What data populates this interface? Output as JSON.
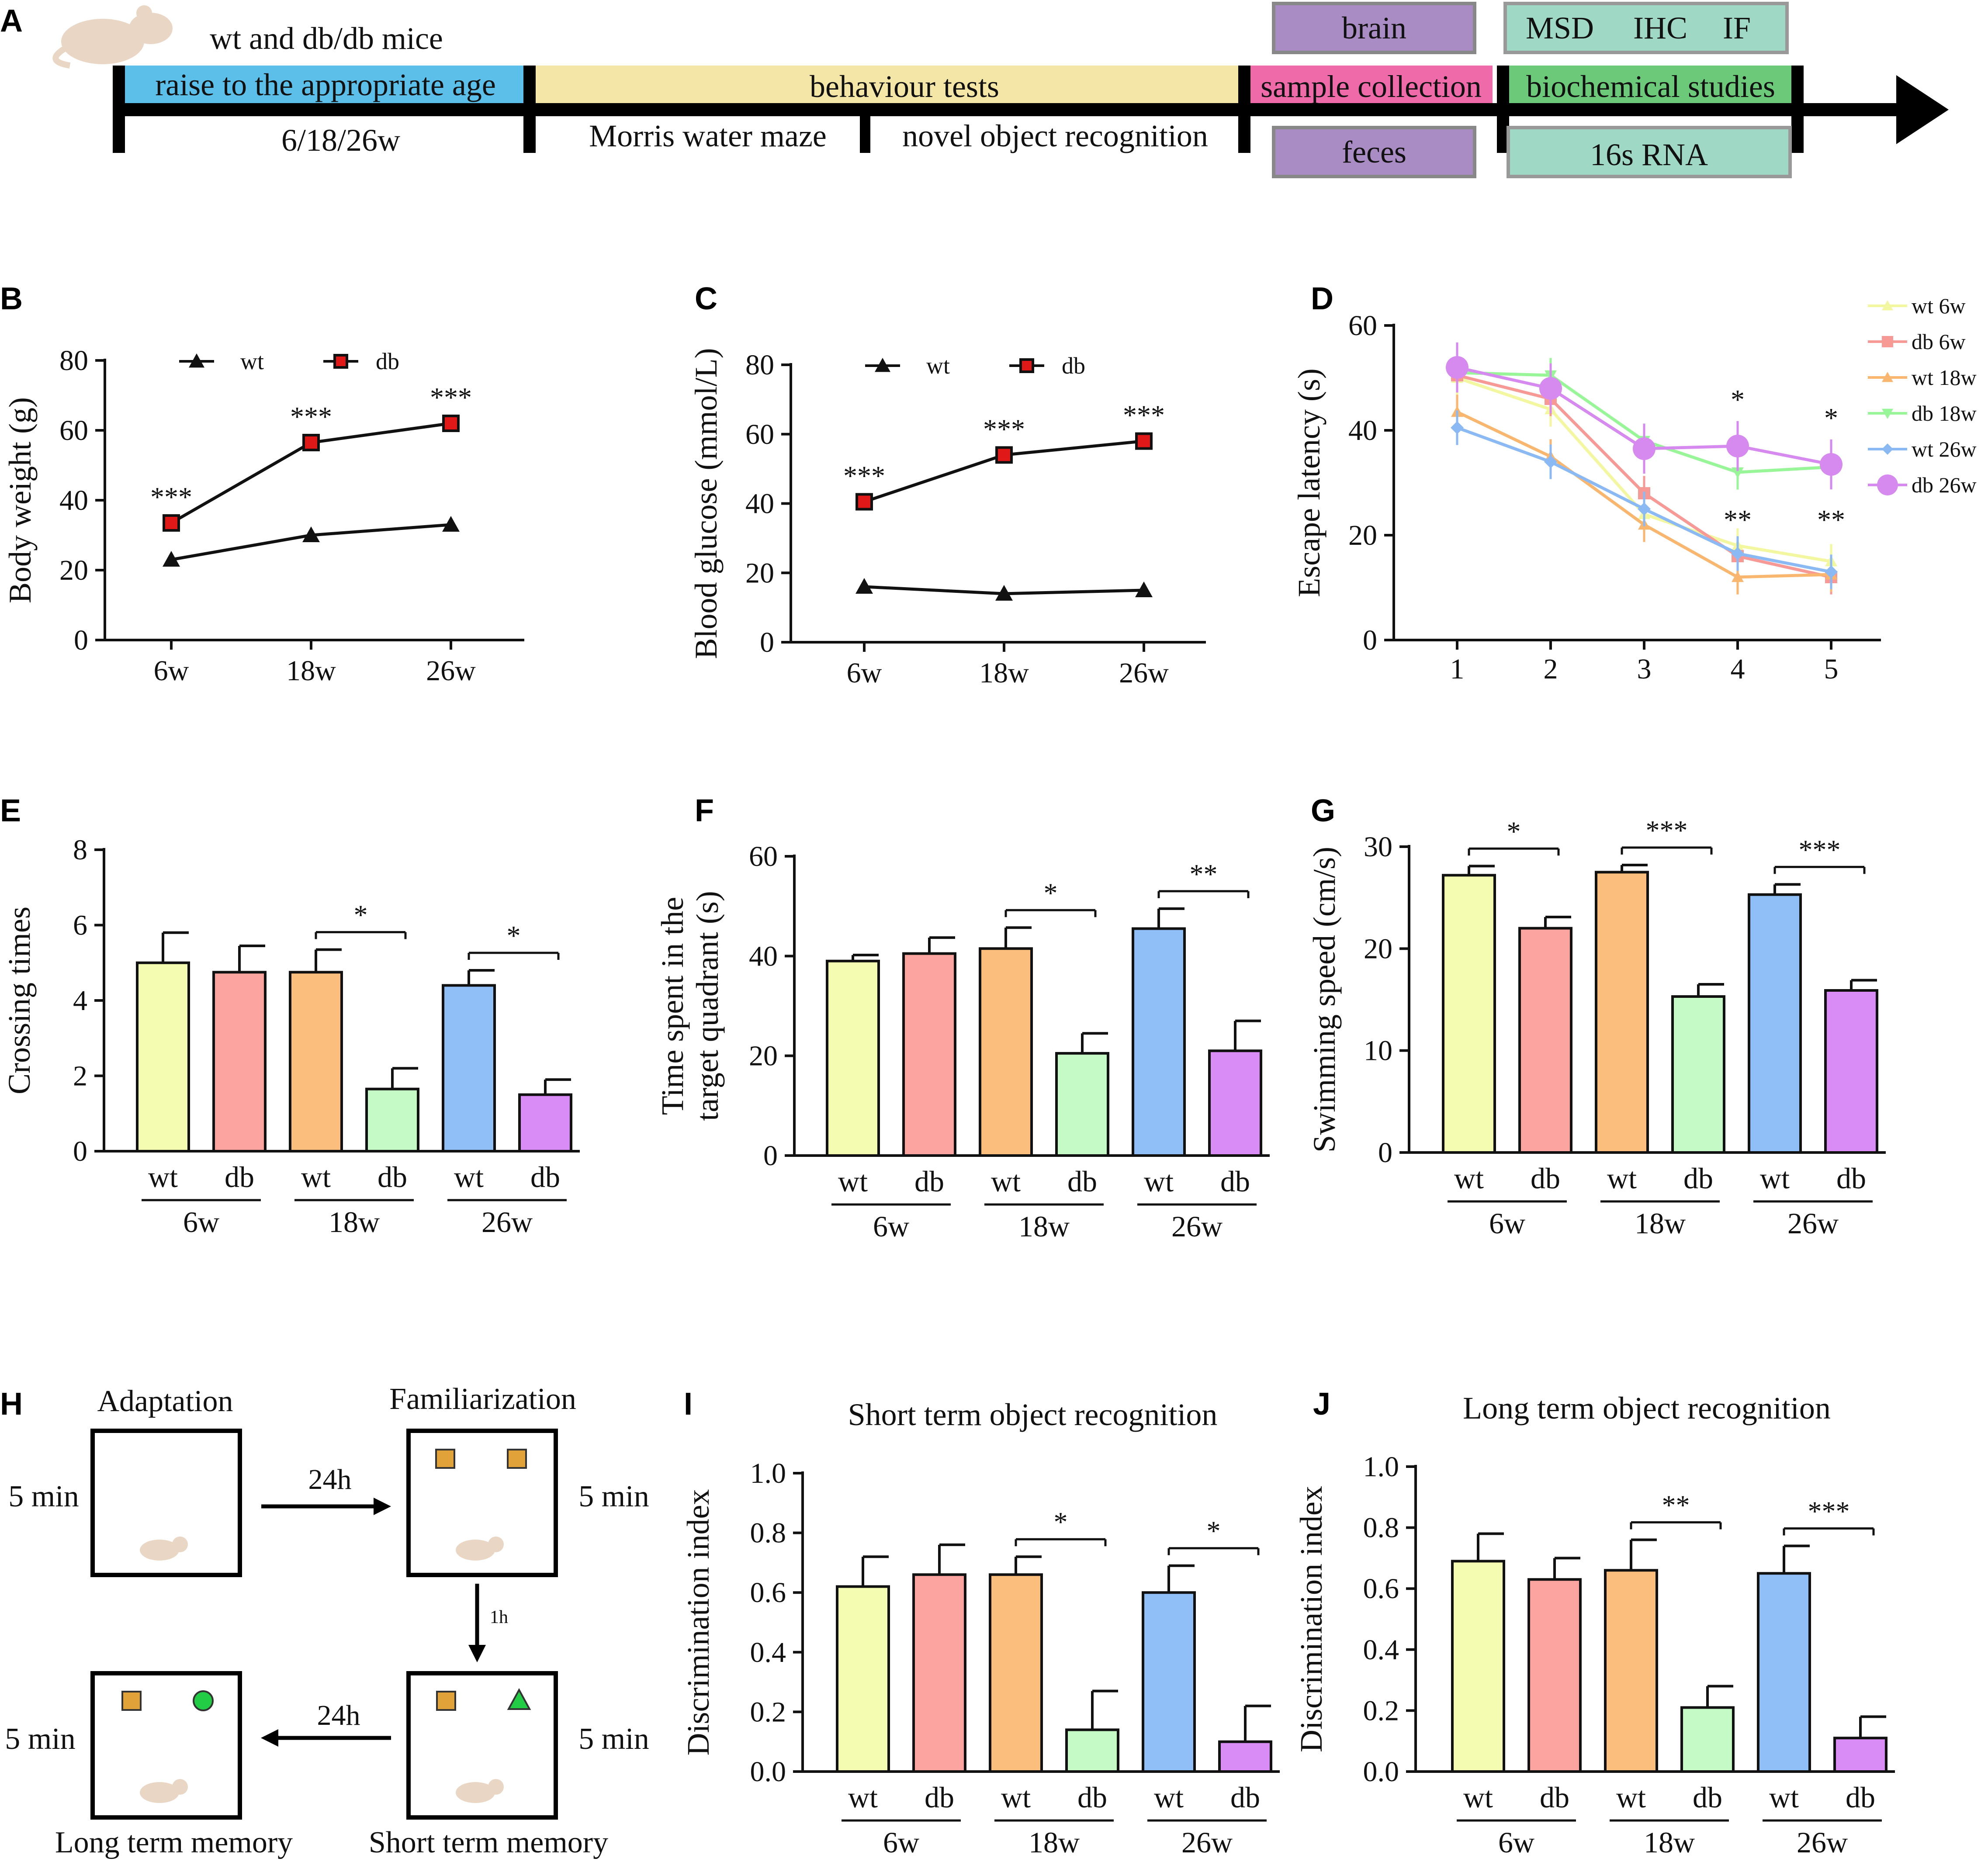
{
  "panels": {
    "A": "A",
    "B": "B",
    "C": "C",
    "D": "D",
    "E": "E",
    "F": "F",
    "G": "G",
    "H": "H",
    "I": "I",
    "J": "J"
  },
  "timeline": {
    "mice_label": "wt and db/db mice",
    "raise": "raise to the appropriate age",
    "ages": "6/18/26w",
    "behaviour": "behaviour tests",
    "mwm": "Morris water maze",
    "nor": "novel object recognition",
    "sample": "sample collection",
    "brain": "brain",
    "feces": "feces",
    "biochem": "biochemical studies",
    "msd": "MSD",
    "ihc": "IHC",
    "if": "IF",
    "rna": "16s RNA",
    "colors": {
      "raise": "#5bbfea",
      "behaviour": "#f4e6a6",
      "sample": "#ee6aa8",
      "biochem": "#6cc97a",
      "purple_box": "#a98cc3",
      "teal_box": "#9fd8c4"
    }
  },
  "protocol": {
    "adaptation": "Adaptation",
    "familiarization": "Familiarization",
    "five_min": "5 min",
    "h24": "24h",
    "h1": "1h",
    "long_term": "Long term memory",
    "short_term": "Short term memory"
  },
  "colors": {
    "wt6": "#f3fcb0",
    "db6": "#fca5a0",
    "wt18": "#fbbe7d",
    "db18": "#c5fac7",
    "wt26": "#8fbff6",
    "db26": "#d98cf6"
  },
  "chart_data": [
    {
      "id": "B",
      "type": "line",
      "ylabel": "Body weight (g)",
      "ylim": [
        0,
        80
      ],
      "yticks": [
        "0",
        "20",
        "40",
        "60",
        "80"
      ],
      "categories": [
        "6w",
        "18w",
        "26w"
      ],
      "series": [
        {
          "name": "wt",
          "values": [
            23,
            30,
            33
          ]
        },
        {
          "name": "db",
          "values": [
            33.5,
            56.5,
            62
          ]
        }
      ],
      "annotations": [
        "***",
        "***",
        "***"
      ]
    },
    {
      "id": "C",
      "type": "line",
      "ylabel": "Blood glucose (mmol/L)",
      "ylim": [
        0,
        80
      ],
      "yticks": [
        "0",
        "20",
        "40",
        "60",
        "80"
      ],
      "categories": [
        "6w",
        "18w",
        "26w"
      ],
      "series": [
        {
          "name": "wt",
          "values": [
            16,
            14,
            15
          ]
        },
        {
          "name": "db",
          "values": [
            40.5,
            54,
            58
          ]
        }
      ],
      "annotations": [
        "***",
        "***",
        "***"
      ]
    },
    {
      "id": "D",
      "type": "line",
      "ylabel": "Escape latency (s)",
      "ylim": [
        0,
        60
      ],
      "yticks": [
        "0",
        "20",
        "40",
        "60"
      ],
      "x": [
        "1",
        "2",
        "3",
        "4",
        "5"
      ],
      "series": [
        {
          "name": "wt 6w",
          "values": [
            50,
            44,
            24,
            18,
            15
          ]
        },
        {
          "name": "db 6w",
          "values": [
            50.5,
            46,
            28,
            16,
            12
          ]
        },
        {
          "name": "wt 18w",
          "values": [
            43.5,
            35,
            22,
            12,
            12.5
          ]
        },
        {
          "name": "db 18w",
          "values": [
            51,
            50.5,
            38,
            32,
            33
          ]
        },
        {
          "name": "wt 26w",
          "values": [
            40.5,
            34,
            25,
            16.5,
            13
          ]
        },
        {
          "name": "db 26w",
          "values": [
            52,
            48,
            36.5,
            37,
            33.5
          ]
        }
      ],
      "annotations": {
        "top": [
          "*",
          "*"
        ],
        "bottom": [
          "**",
          "**"
        ]
      }
    },
    {
      "id": "E",
      "type": "bar",
      "ylabel": "Crossing times",
      "ylim": [
        0,
        8
      ],
      "yticks": [
        "0",
        "2",
        "4",
        "6",
        "8"
      ],
      "groups": [
        "6w",
        "18w",
        "26w"
      ],
      "categories": [
        "wt",
        "db",
        "wt",
        "db",
        "wt",
        "db"
      ],
      "values": [
        5,
        4.75,
        4.75,
        1.65,
        4.4,
        1.5
      ],
      "errors": [
        0.8,
        0.7,
        0.6,
        0.55,
        0.4,
        0.4
      ],
      "significance": [
        {
          "pair": [
            2,
            3
          ],
          "label": "*"
        },
        {
          "pair": [
            4,
            5
          ],
          "label": "*"
        }
      ]
    },
    {
      "id": "F",
      "type": "bar",
      "ylabel_lines": [
        "Time spent in the",
        "target quadrant (s)"
      ],
      "ylim": [
        0,
        60
      ],
      "yticks": [
        "0",
        "20",
        "40",
        "60"
      ],
      "groups": [
        "6w",
        "18w",
        "26w"
      ],
      "categories": [
        "wt",
        "db",
        "wt",
        "db",
        "wt",
        "db"
      ],
      "values": [
        39,
        40.5,
        41.5,
        20.5,
        45.5,
        21
      ],
      "errors": [
        1.2,
        3.2,
        4.2,
        4,
        4,
        6
      ],
      "significance": [
        {
          "pair": [
            2,
            3
          ],
          "label": "*"
        },
        {
          "pair": [
            4,
            5
          ],
          "label": "**"
        }
      ]
    },
    {
      "id": "G",
      "type": "bar",
      "ylabel": "Swimming speed (cm/s)",
      "ylim": [
        0,
        30
      ],
      "yticks": [
        "0",
        "10",
        "20",
        "30"
      ],
      "groups": [
        "6w",
        "18w",
        "26w"
      ],
      "categories": [
        "wt",
        "db",
        "wt",
        "db",
        "wt",
        "db"
      ],
      "values": [
        27.2,
        22,
        27.5,
        15.3,
        25.3,
        15.9
      ],
      "errors": [
        0.9,
        1.1,
        0.7,
        1.2,
        1,
        1
      ],
      "significance": [
        {
          "pair": [
            0,
            1
          ],
          "label": "*"
        },
        {
          "pair": [
            2,
            3
          ],
          "label": "***"
        },
        {
          "pair": [
            4,
            5
          ],
          "label": "***"
        }
      ]
    },
    {
      "id": "I",
      "type": "bar",
      "title": "Short term object recognition",
      "ylabel": "Discrimination index",
      "ylim": [
        0,
        1
      ],
      "yticks": [
        "0.0",
        "0.2",
        "0.4",
        "0.6",
        "0.8",
        "1.0"
      ],
      "groups": [
        "6w",
        "18w",
        "26w"
      ],
      "categories": [
        "wt",
        "db",
        "wt",
        "db",
        "wt",
        "db"
      ],
      "values": [
        0.62,
        0.66,
        0.66,
        0.14,
        0.6,
        0.1
      ],
      "errors": [
        0.1,
        0.1,
        0.06,
        0.13,
        0.09,
        0.12
      ],
      "significance": [
        {
          "pair": [
            2,
            3
          ],
          "label": "*"
        },
        {
          "pair": [
            4,
            5
          ],
          "label": "*"
        }
      ]
    },
    {
      "id": "J",
      "type": "bar",
      "title": "Long term object recognition",
      "ylabel": "Discrimination index",
      "ylim": [
        0,
        1
      ],
      "yticks": [
        "0.0",
        "0.2",
        "0.4",
        "0.6",
        "0.8",
        "1.0"
      ],
      "groups": [
        "6w",
        "18w",
        "26w"
      ],
      "categories": [
        "wt",
        "db",
        "wt",
        "db",
        "wt",
        "db"
      ],
      "values": [
        0.69,
        0.63,
        0.66,
        0.21,
        0.65,
        0.11
      ],
      "errors": [
        0.09,
        0.07,
        0.1,
        0.07,
        0.09,
        0.07
      ],
      "significance": [
        {
          "pair": [
            2,
            3
          ],
          "label": "**"
        },
        {
          "pair": [
            4,
            5
          ],
          "label": "***"
        }
      ]
    }
  ]
}
